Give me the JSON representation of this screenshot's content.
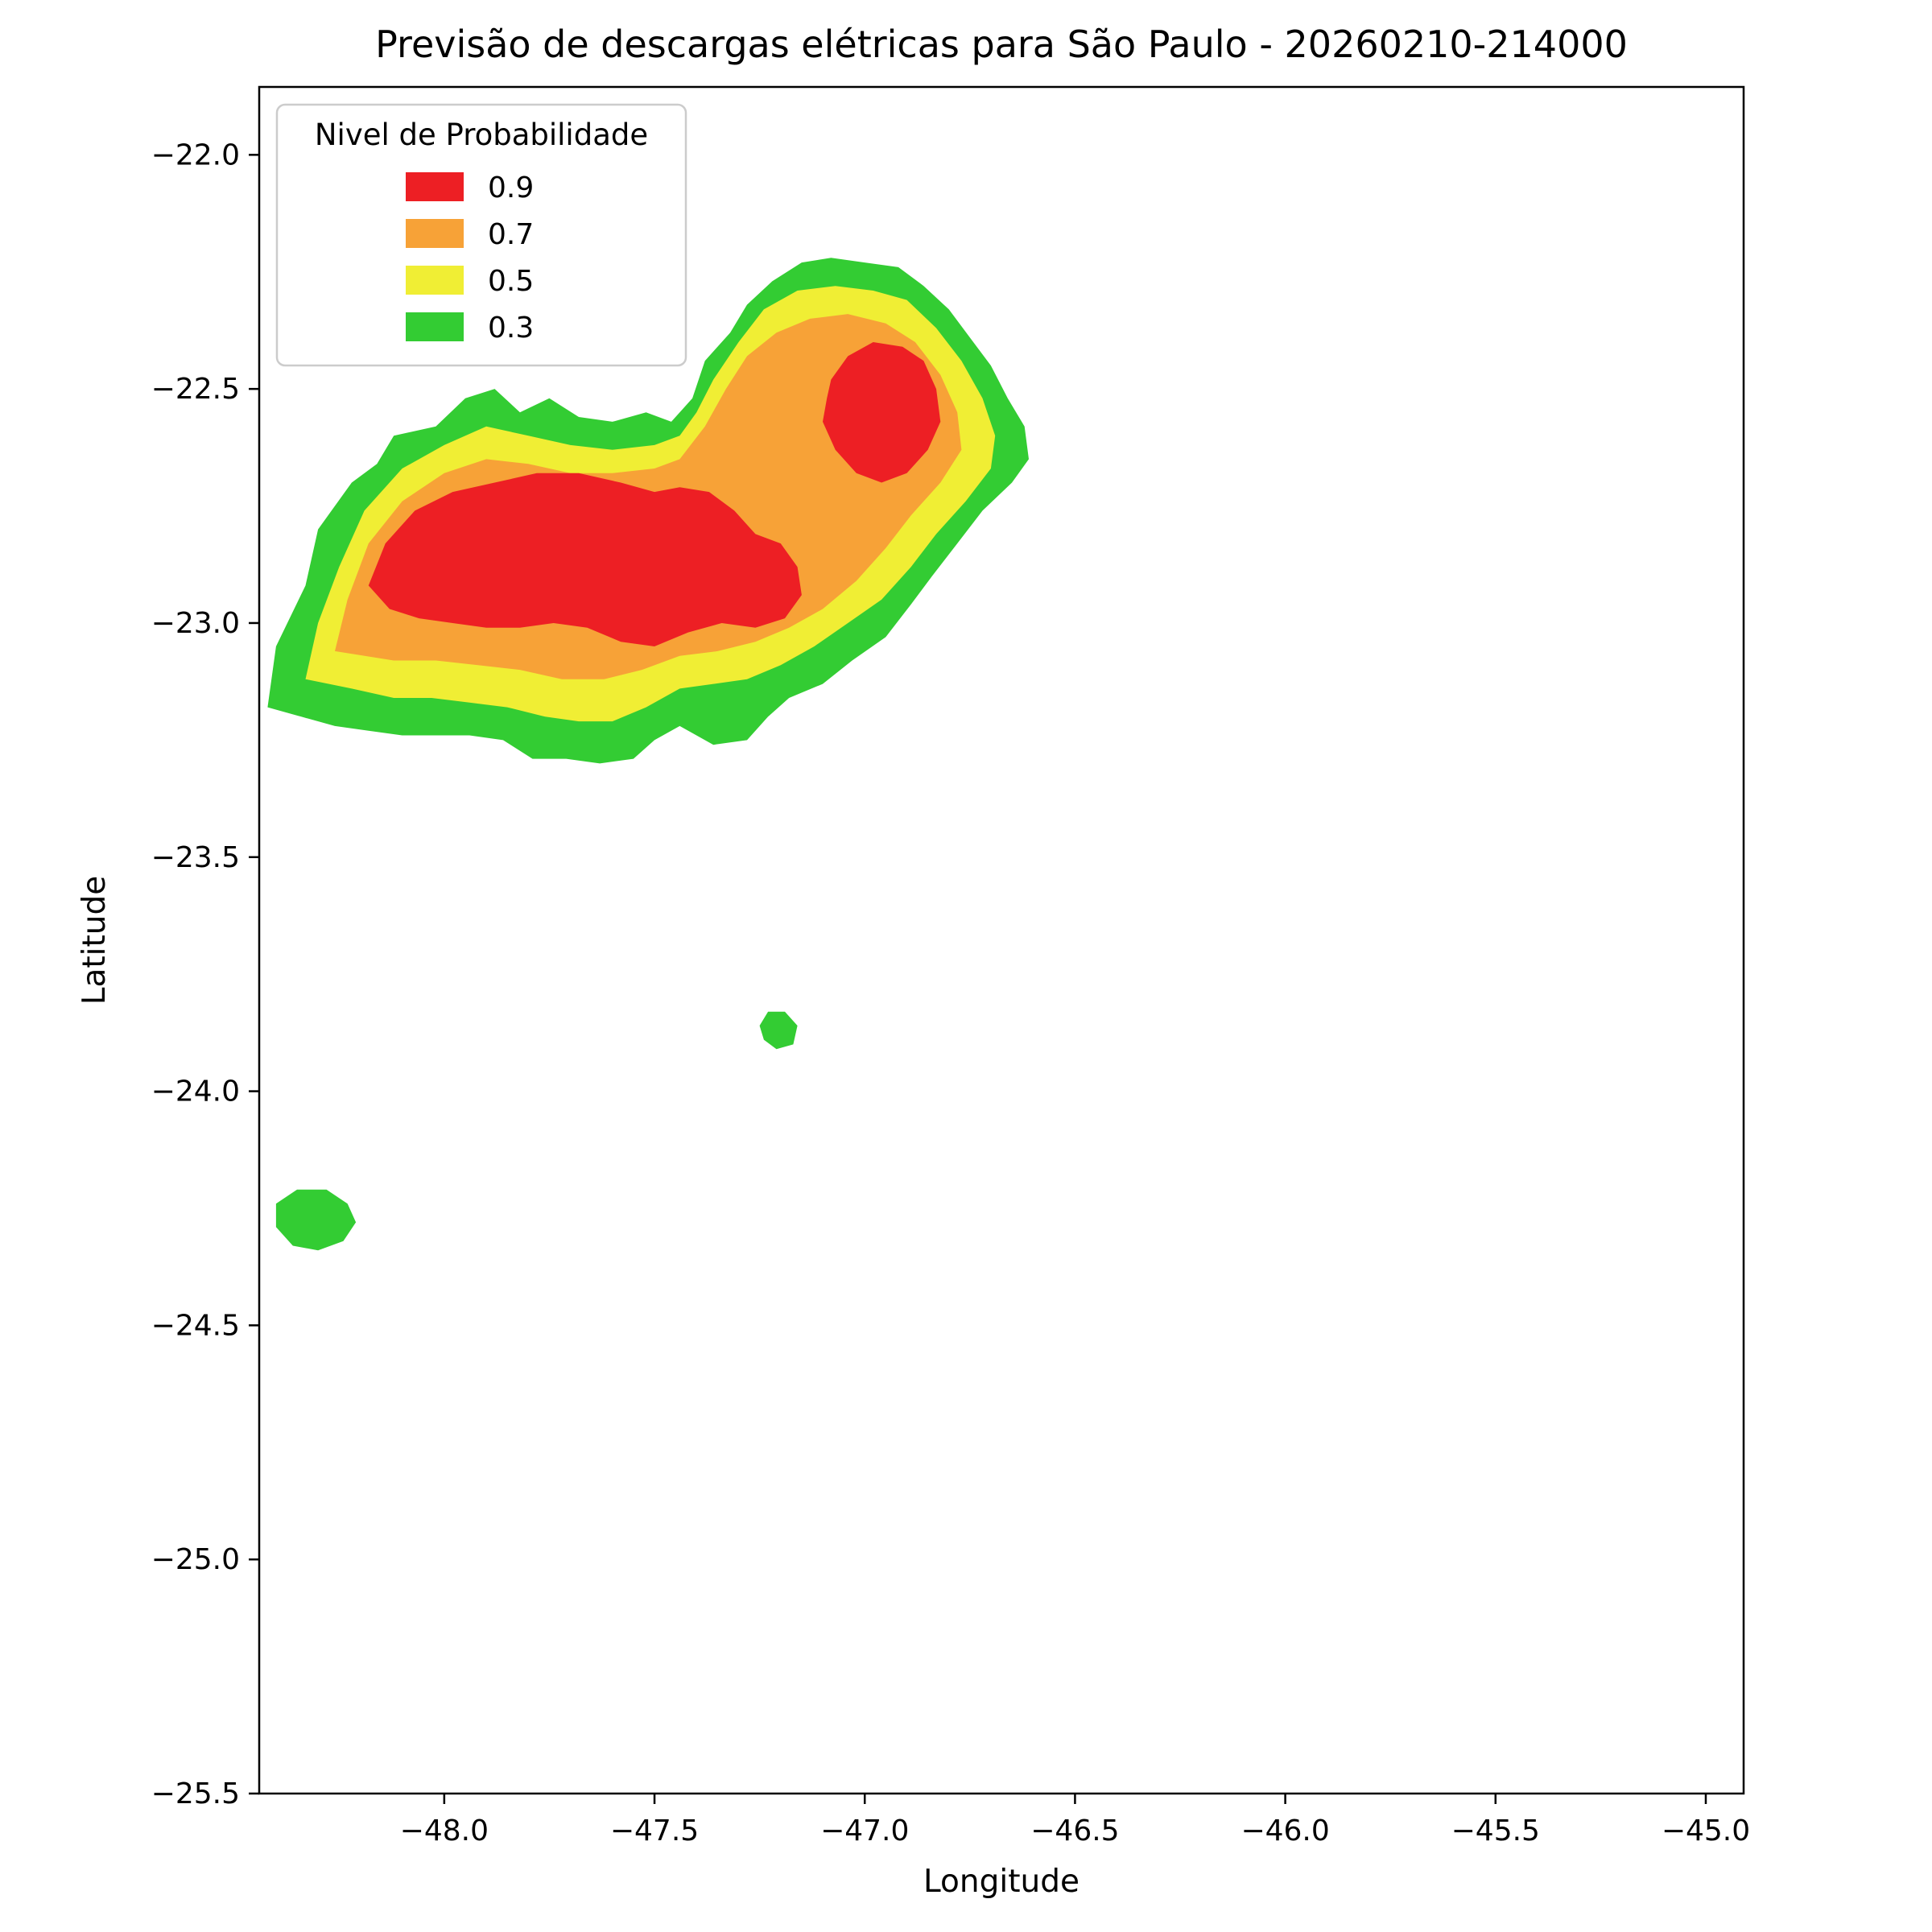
{
  "chart_data": {
    "type": "filled-contour-map",
    "title": "Previsão de descargas elétricas para São Paulo - 20260210-214000",
    "xlabel": "Longitude",
    "ylabel": "Latitude",
    "xlim": [
      -48.44,
      -44.91
    ],
    "ylim": [
      -25.5,
      -21.855
    ],
    "grid": false,
    "xticks": {
      "values": [
        -48.0,
        -47.5,
        -47.0,
        -46.5,
        -46.0,
        -45.5,
        -45.0
      ],
      "labels": [
        "−48.0",
        "−47.5",
        "−47.0",
        "−46.5",
        "−46.0",
        "−45.5",
        "−45.0"
      ]
    },
    "yticks": {
      "values": [
        -22.0,
        -22.5,
        -23.0,
        -23.5,
        -24.0,
        -24.5,
        -25.0,
        -25.5
      ],
      "labels": [
        "−22.0",
        "−22.5",
        "−23.0",
        "−23.5",
        "−24.0",
        "−24.5",
        "−25.0",
        "−25.5"
      ]
    },
    "legend": {
      "title": "Nivel de Probabilidade",
      "position": "upper left",
      "entries": [
        {
          "label": "0.9",
          "level": 0.9,
          "color": "#ed1f24"
        },
        {
          "label": "0.7",
          "level": 0.7,
          "color": "#f7a237"
        },
        {
          "label": "0.5",
          "level": 0.5,
          "color": "#f0ee34"
        },
        {
          "label": "0.3",
          "level": 0.3,
          "color": "#33cc33"
        }
      ]
    },
    "contours": [
      {
        "level": 0.3,
        "color": "#33cc33",
        "polygons": [
          [
            [
              -48.42,
              -23.18
            ],
            [
              -48.4,
              -23.05
            ],
            [
              -48.33,
              -22.92
            ],
            [
              -48.3,
              -22.8
            ],
            [
              -48.22,
              -22.7
            ],
            [
              -48.16,
              -22.66
            ],
            [
              -48.12,
              -22.6
            ],
            [
              -48.02,
              -22.58
            ],
            [
              -47.95,
              -22.52
            ],
            [
              -47.88,
              -22.5
            ],
            [
              -47.82,
              -22.55
            ],
            [
              -47.75,
              -22.52
            ],
            [
              -47.68,
              -22.56
            ],
            [
              -47.6,
              -22.57
            ],
            [
              -47.52,
              -22.55
            ],
            [
              -47.46,
              -22.57
            ],
            [
              -47.41,
              -22.52
            ],
            [
              -47.38,
              -22.44
            ],
            [
              -47.32,
              -22.38
            ],
            [
              -47.28,
              -22.32
            ],
            [
              -47.22,
              -22.27
            ],
            [
              -47.15,
              -22.23
            ],
            [
              -47.08,
              -22.22
            ],
            [
              -47.0,
              -22.23
            ],
            [
              -46.92,
              -22.24
            ],
            [
              -46.86,
              -22.28
            ],
            [
              -46.8,
              -22.33
            ],
            [
              -46.75,
              -22.39
            ],
            [
              -46.7,
              -22.45
            ],
            [
              -46.66,
              -22.52
            ],
            [
              -46.62,
              -22.58
            ],
            [
              -46.61,
              -22.65
            ],
            [
              -46.65,
              -22.7
            ],
            [
              -46.72,
              -22.76
            ],
            [
              -46.78,
              -22.83
            ],
            [
              -46.84,
              -22.9
            ],
            [
              -46.89,
              -22.96
            ],
            [
              -46.95,
              -23.03
            ],
            [
              -47.03,
              -23.08
            ],
            [
              -47.1,
              -23.13
            ],
            [
              -47.18,
              -23.16
            ],
            [
              -47.23,
              -23.2
            ],
            [
              -47.28,
              -23.25
            ],
            [
              -47.36,
              -23.26
            ],
            [
              -47.44,
              -23.22
            ],
            [
              -47.5,
              -23.25
            ],
            [
              -47.55,
              -23.29
            ],
            [
              -47.63,
              -23.3
            ],
            [
              -47.71,
              -23.29
            ],
            [
              -47.79,
              -23.29
            ],
            [
              -47.86,
              -23.25
            ],
            [
              -47.94,
              -23.24
            ],
            [
              -48.02,
              -23.24
            ],
            [
              -48.1,
              -23.24
            ],
            [
              -48.18,
              -23.23
            ],
            [
              -48.26,
              -23.22
            ],
            [
              -48.34,
              -23.2
            ]
          ],
          [
            [
              -47.25,
              -23.86
            ],
            [
              -47.23,
              -23.83
            ],
            [
              -47.19,
              -23.83
            ],
            [
              -47.16,
              -23.86
            ],
            [
              -47.17,
              -23.9
            ],
            [
              -47.21,
              -23.91
            ],
            [
              -47.24,
              -23.89
            ]
          ],
          [
            [
              -48.4,
              -24.24
            ],
            [
              -48.35,
              -24.21
            ],
            [
              -48.28,
              -24.21
            ],
            [
              -48.23,
              -24.24
            ],
            [
              -48.21,
              -24.28
            ],
            [
              -48.24,
              -24.32
            ],
            [
              -48.3,
              -24.34
            ],
            [
              -48.36,
              -24.33
            ],
            [
              -48.4,
              -24.29
            ]
          ]
        ]
      },
      {
        "level": 0.5,
        "color": "#f0ee34",
        "polygons": [
          [
            [
              -48.33,
              -23.12
            ],
            [
              -48.3,
              -23.0
            ],
            [
              -48.25,
              -22.88
            ],
            [
              -48.19,
              -22.76
            ],
            [
              -48.1,
              -22.67
            ],
            [
              -48.0,
              -22.62
            ],
            [
              -47.9,
              -22.58
            ],
            [
              -47.8,
              -22.6
            ],
            [
              -47.7,
              -22.62
            ],
            [
              -47.6,
              -22.63
            ],
            [
              -47.5,
              -22.62
            ],
            [
              -47.44,
              -22.6
            ],
            [
              -47.4,
              -22.55
            ],
            [
              -47.36,
              -22.48
            ],
            [
              -47.3,
              -22.4
            ],
            [
              -47.24,
              -22.33
            ],
            [
              -47.16,
              -22.29
            ],
            [
              -47.07,
              -22.28
            ],
            [
              -46.98,
              -22.29
            ],
            [
              -46.9,
              -22.31
            ],
            [
              -46.83,
              -22.37
            ],
            [
              -46.77,
              -22.44
            ],
            [
              -46.72,
              -22.52
            ],
            [
              -46.69,
              -22.6
            ],
            [
              -46.7,
              -22.67
            ],
            [
              -46.76,
              -22.74
            ],
            [
              -46.83,
              -22.81
            ],
            [
              -46.89,
              -22.88
            ],
            [
              -46.96,
              -22.95
            ],
            [
              -47.04,
              -23.0
            ],
            [
              -47.12,
              -23.05
            ],
            [
              -47.2,
              -23.09
            ],
            [
              -47.28,
              -23.12
            ],
            [
              -47.36,
              -23.13
            ],
            [
              -47.44,
              -23.14
            ],
            [
              -47.52,
              -23.18
            ],
            [
              -47.6,
              -23.21
            ],
            [
              -47.68,
              -23.21
            ],
            [
              -47.76,
              -23.2
            ],
            [
              -47.85,
              -23.18
            ],
            [
              -47.94,
              -23.17
            ],
            [
              -48.03,
              -23.16
            ],
            [
              -48.12,
              -23.16
            ],
            [
              -48.22,
              -23.14
            ]
          ]
        ]
      },
      {
        "level": 0.7,
        "color": "#f7a237",
        "polygons": [
          [
            [
              -48.26,
              -23.06
            ],
            [
              -48.23,
              -22.95
            ],
            [
              -48.18,
              -22.83
            ],
            [
              -48.1,
              -22.74
            ],
            [
              -48.0,
              -22.68
            ],
            [
              -47.9,
              -22.65
            ],
            [
              -47.8,
              -22.66
            ],
            [
              -47.7,
              -22.68
            ],
            [
              -47.6,
              -22.68
            ],
            [
              -47.5,
              -22.67
            ],
            [
              -47.44,
              -22.65
            ],
            [
              -47.38,
              -22.58
            ],
            [
              -47.33,
              -22.5
            ],
            [
              -47.28,
              -22.43
            ],
            [
              -47.21,
              -22.38
            ],
            [
              -47.13,
              -22.35
            ],
            [
              -47.04,
              -22.34
            ],
            [
              -46.95,
              -22.36
            ],
            [
              -46.88,
              -22.4
            ],
            [
              -46.82,
              -22.47
            ],
            [
              -46.78,
              -22.55
            ],
            [
              -46.77,
              -22.63
            ],
            [
              -46.82,
              -22.7
            ],
            [
              -46.89,
              -22.77
            ],
            [
              -46.95,
              -22.84
            ],
            [
              -47.02,
              -22.91
            ],
            [
              -47.1,
              -22.97
            ],
            [
              -47.18,
              -23.01
            ],
            [
              -47.26,
              -23.04
            ],
            [
              -47.35,
              -23.06
            ],
            [
              -47.44,
              -23.07
            ],
            [
              -47.53,
              -23.1
            ],
            [
              -47.62,
              -23.12
            ],
            [
              -47.72,
              -23.12
            ],
            [
              -47.82,
              -23.1
            ],
            [
              -47.92,
              -23.09
            ],
            [
              -48.02,
              -23.08
            ],
            [
              -48.12,
              -23.08
            ]
          ]
        ]
      },
      {
        "level": 0.9,
        "color": "#ed1f24",
        "polygons": [
          [
            [
              -48.18,
              -22.92
            ],
            [
              -48.14,
              -22.83
            ],
            [
              -48.07,
              -22.76
            ],
            [
              -47.98,
              -22.72
            ],
            [
              -47.88,
              -22.7
            ],
            [
              -47.78,
              -22.68
            ],
            [
              -47.68,
              -22.68
            ],
            [
              -47.58,
              -22.7
            ],
            [
              -47.5,
              -22.72
            ],
            [
              -47.44,
              -22.71
            ],
            [
              -47.37,
              -22.72
            ],
            [
              -47.31,
              -22.76
            ],
            [
              -47.26,
              -22.81
            ],
            [
              -47.2,
              -22.83
            ],
            [
              -47.16,
              -22.88
            ],
            [
              -47.15,
              -22.94
            ],
            [
              -47.19,
              -22.99
            ],
            [
              -47.26,
              -23.01
            ],
            [
              -47.34,
              -23.0
            ],
            [
              -47.42,
              -23.02
            ],
            [
              -47.5,
              -23.05
            ],
            [
              -47.58,
              -23.04
            ],
            [
              -47.66,
              -23.01
            ],
            [
              -47.74,
              -23.0
            ],
            [
              -47.82,
              -23.01
            ],
            [
              -47.9,
              -23.01
            ],
            [
              -47.98,
              -23.0
            ],
            [
              -48.06,
              -22.99
            ],
            [
              -48.13,
              -22.97
            ]
          ],
          [
            [
              -47.08,
              -22.48
            ],
            [
              -47.04,
              -22.43
            ],
            [
              -46.98,
              -22.4
            ],
            [
              -46.91,
              -22.41
            ],
            [
              -46.86,
              -22.44
            ],
            [
              -46.83,
              -22.5
            ],
            [
              -46.82,
              -22.57
            ],
            [
              -46.85,
              -22.63
            ],
            [
              -46.9,
              -22.68
            ],
            [
              -46.96,
              -22.7
            ],
            [
              -47.02,
              -22.68
            ],
            [
              -47.07,
              -22.63
            ],
            [
              -47.1,
              -22.57
            ],
            [
              -47.09,
              -22.52
            ]
          ]
        ]
      }
    ]
  }
}
